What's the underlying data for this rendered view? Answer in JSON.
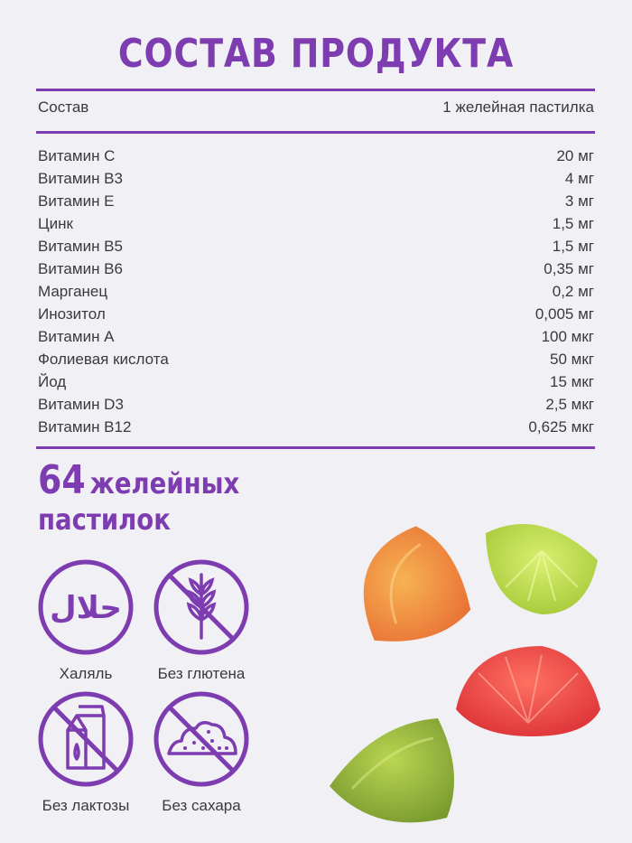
{
  "title": "СОСТАВ ПРОДУКТА",
  "header": {
    "left": "Состав",
    "right": "1 желейная пастилка"
  },
  "rows": [
    {
      "name": "Витамин С",
      "value": "20 мг"
    },
    {
      "name": "Витамин В3",
      "value": "4 мг"
    },
    {
      "name": "Витамин Е",
      "value": "3 мг"
    },
    {
      "name": "Цинк",
      "value": "1,5 мг"
    },
    {
      "name": "Витамин В5",
      "value": "1,5 мг"
    },
    {
      "name": "Витамин В6",
      "value": "0,35 мг"
    },
    {
      "name": "Марганец",
      "value": "0,2 мг"
    },
    {
      "name": "Инозитол",
      "value": "0,005 мг"
    },
    {
      "name": "Витамин А",
      "value": "100 мкг"
    },
    {
      "name": "Фолиевая кислота",
      "value": "50 мкг"
    },
    {
      "name": "Йод",
      "value": "15 мкг"
    },
    {
      "name": "Витамин D3",
      "value": "2,5 мкг"
    },
    {
      "name": "Витамин В12",
      "value": "0,625 мкг"
    }
  ],
  "count": {
    "number": "64",
    "line1": "желейных",
    "line2": "пастилок"
  },
  "badges": [
    {
      "label": "Халяль",
      "icon": "halal-icon"
    },
    {
      "label": "Без глютена",
      "icon": "no-gluten-icon"
    },
    {
      "label": "Без лактозы",
      "icon": "no-lactose-icon"
    },
    {
      "label": "Без сахара",
      "icon": "no-sugar-icon"
    }
  ],
  "colors": {
    "accent": "#7d3cb0",
    "text": "#3a3a3a",
    "background": "#f1f0f5"
  },
  "halal_text": "حلال"
}
